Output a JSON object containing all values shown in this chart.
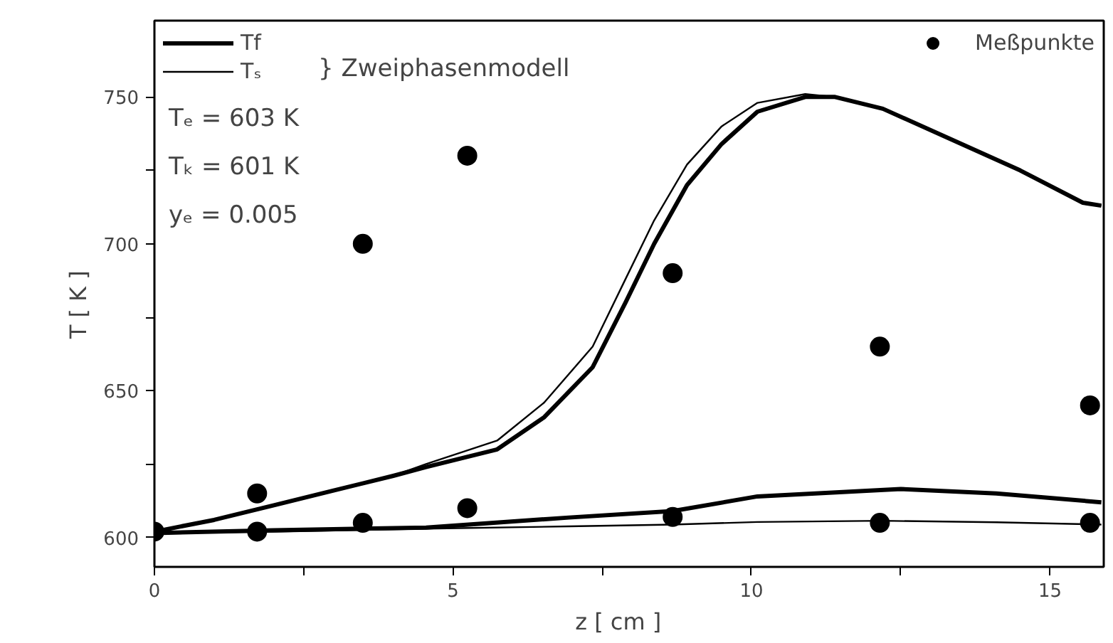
{
  "chart_data": {
    "type": "line",
    "xlabel": "z    [ cm ]",
    "ylabel": "T    [ K ]",
    "xlim": [
      0,
      15.9
    ],
    "ylim": [
      590,
      776
    ],
    "xticks": [
      0,
      {
        "value": 2.5,
        "label": null
      },
      5,
      {
        "value": 7.5,
        "label": null
      },
      10,
      {
        "value": 12.5,
        "label": null
      },
      15
    ],
    "yticks": [
      600,
      {
        "value": 625,
        "label": null
      },
      650,
      {
        "value": 675,
        "label": null
      },
      700,
      {
        "value": 725,
        "label": null
      },
      750
    ],
    "grid": false,
    "legend": "top",
    "line_style": "solid",
    "series": [
      {
        "name": "Tf",
        "color": "#000000",
        "x": [
          0,
          1,
          2,
          3,
          4,
          4.55,
          5.74,
          6.53,
          7.34,
          7.89,
          8.37,
          8.92,
          9.5,
          10.1,
          10.9,
          11.4,
          12.2,
          13.3,
          14.5,
          15.55,
          15.86
        ],
        "values": [
          602,
          606,
          611,
          616,
          621,
          624,
          630,
          641,
          658,
          680,
          700,
          720,
          734,
          745,
          750,
          750,
          746,
          736,
          725,
          714,
          713
        ]
      },
      {
        "name": "Tₛ",
        "color": "#000000",
        "x": [
          0,
          1,
          2,
          3,
          4,
          4.55,
          5.74,
          6.53,
          7.34,
          7.89,
          8.37,
          8.92,
          9.5,
          10.1,
          10.9,
          11.4,
          12.2,
          13.3,
          14.5,
          15.55,
          15.86
        ],
        "values": [
          602,
          606,
          611,
          616,
          621,
          625,
          633,
          646,
          665,
          688,
          708,
          727,
          740,
          748,
          751,
          750,
          746,
          736,
          725,
          714,
          713
        ]
      },
      {
        "color": "#000000",
        "x": [
          0,
          2,
          4.55,
          6.94,
          8.68,
          10.1,
          12.5,
          14.1,
          15.86
        ],
        "values": [
          601.5,
          602.5,
          603.4,
          606.8,
          609,
          614,
          616.5,
          615,
          612
        ]
      },
      {
        "color": "#000000",
        "x": [
          0,
          2,
          4.55,
          6.94,
          8.68,
          10.1,
          12.2,
          14.1,
          15.86
        ],
        "values": [
          601.5,
          602,
          603,
          603.8,
          604.4,
          605.3,
          605.7,
          605.2,
          604.4
        ]
      },
      {
        "name": "Meßpunkte",
        "type": "scatter",
        "marker": "circle",
        "color": "#000000",
        "x": [
          0,
          1.72,
          1.72,
          3.49,
          3.49,
          5.24,
          5.24,
          8.68,
          8.68,
          12.15,
          12.15,
          15.67,
          15.67
        ],
        "values": [
          602,
          615,
          602,
          700,
          605,
          730,
          610,
          690,
          607,
          665,
          605,
          645,
          605
        ]
      }
    ],
    "annotations": [
      "} Zweiphasenmodell",
      "Tₑ = 603 K",
      "Tₖ = 601 K",
      "yₑ = 0.005"
    ]
  }
}
